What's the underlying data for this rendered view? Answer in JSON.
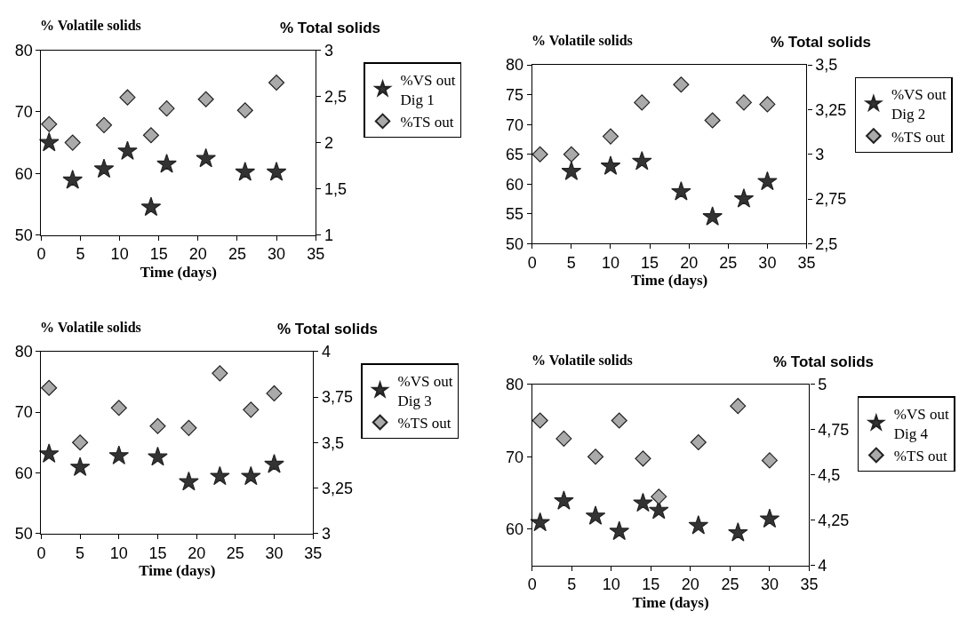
{
  "chart_data": [
    {
      "type": "scatter",
      "xlabel": "Time (days)",
      "ylabel": "% Volatile solids",
      "y2label": "% Total solids",
      "xlim": [
        0,
        35
      ],
      "xticks": [
        0,
        5,
        10,
        15,
        20,
        25,
        30,
        35
      ],
      "ylim": [
        50,
        80
      ],
      "yticks": [
        50,
        60,
        70,
        80
      ],
      "y2lim": [
        1,
        3
      ],
      "y2ticks": [
        1,
        {
          "value": 1.5,
          "label": "1,5"
        },
        2,
        {
          "value": 2.5,
          "label": "2,5"
        },
        3
      ],
      "legend": "right",
      "series": [
        {
          "name": "%VS out\nDig 1",
          "color": "#333333",
          "marker": "star",
          "x": [
            1,
            4,
            8,
            11,
            14,
            16,
            21,
            26,
            30
          ],
          "values": [
            65.0,
            58.9,
            60.7,
            63.6,
            54.5,
            61.5,
            62.4,
            60.2,
            60.2
          ]
        },
        {
          "name": "%TS out",
          "color": "#aaaaaa",
          "marker": "diamond",
          "axis": "y2",
          "x": [
            1,
            4,
            8,
            11,
            14,
            16,
            21,
            26,
            30
          ],
          "values": [
            2.2,
            2.0,
            2.19,
            2.49,
            2.08,
            2.37,
            2.47,
            2.35,
            2.65
          ]
        }
      ]
    },
    {
      "type": "scatter",
      "xlabel": "Time (days)",
      "ylabel": "% Volatile solids",
      "y2label": "% Total solids",
      "xlim": [
        0,
        35
      ],
      "xticks": [
        0,
        5,
        10,
        15,
        20,
        25,
        30,
        35
      ],
      "ylim": [
        50,
        80
      ],
      "yticks": [
        50,
        55,
        60,
        65,
        70,
        75,
        80
      ],
      "y2lim": [
        2.5,
        3.5
      ],
      "y2ticks": [
        {
          "value": 2.5,
          "label": "2,5"
        },
        {
          "value": 2.75,
          "label": "2,75"
        },
        3,
        {
          "value": 3.25,
          "label": "3,25"
        },
        {
          "value": 3.5,
          "label": "3,5"
        }
      ],
      "legend": "right",
      "series": [
        {
          "name": "%VS out\nDig 2",
          "color": "#333333",
          "marker": "star",
          "x": [
            5,
            10,
            14,
            19,
            23,
            27,
            30
          ],
          "values": [
            62.1,
            63.0,
            63.8,
            58.7,
            54.5,
            57.5,
            60.4
          ]
        },
        {
          "name": "%TS out",
          "color": "#aaaaaa",
          "marker": "diamond",
          "axis": "y2",
          "x": [
            1,
            5,
            10,
            14,
            19,
            23,
            27,
            30
          ],
          "values": [
            3.0,
            3.0,
            3.1,
            3.29,
            3.39,
            3.19,
            3.29,
            3.28
          ]
        }
      ]
    },
    {
      "type": "scatter",
      "xlabel": "Time (days)",
      "ylabel": "% Volatile solids",
      "y2label": "% Total solids",
      "xlim": [
        0,
        35
      ],
      "xticks": [
        0,
        5,
        10,
        15,
        20,
        25,
        30,
        35
      ],
      "ylim": [
        50,
        80
      ],
      "yticks": [
        50,
        60,
        70,
        80
      ],
      "y2lim": [
        3,
        4
      ],
      "y2ticks": [
        3,
        {
          "value": 3.25,
          "label": "3,25"
        },
        {
          "value": 3.5,
          "label": "3,5"
        },
        {
          "value": 3.75,
          "label": "3,75"
        },
        4
      ],
      "legend": "right",
      "series": [
        {
          "name": "%VS out\nDig 3",
          "color": "#333333",
          "marker": "star",
          "x": [
            1,
            5,
            10,
            15,
            19,
            23,
            27,
            30
          ],
          "values": [
            63.1,
            60.9,
            62.8,
            62.6,
            58.5,
            59.4,
            59.4,
            61.4
          ]
        },
        {
          "name": "%TS out",
          "color": "#aaaaaa",
          "marker": "diamond",
          "axis": "y2",
          "x": [
            1,
            5,
            10,
            15,
            19,
            23,
            27,
            30
          ],
          "values": [
            3.8,
            3.5,
            3.69,
            3.59,
            3.58,
            3.88,
            3.68,
            3.77
          ]
        }
      ]
    },
    {
      "type": "scatter",
      "xlabel": "Time (days)",
      "ylabel": "% Volatile solids",
      "y2label": "% Total solids",
      "xlim": [
        0,
        35
      ],
      "xticks": [
        0,
        5,
        10,
        15,
        20,
        25,
        30,
        35
      ],
      "ylim": [
        55,
        80
      ],
      "yticks": [
        60,
        70,
        80
      ],
      "y2lim": [
        4,
        5
      ],
      "y2ticks": [
        4,
        {
          "value": 4.25,
          "label": "4,25"
        },
        {
          "value": 4.5,
          "label": "4,5"
        },
        {
          "value": 4.75,
          "label": "4,75"
        },
        5
      ],
      "legend": "right",
      "series": [
        {
          "name": "%VS out\nDig 4",
          "color": "#333333",
          "marker": "star",
          "x": [
            1,
            4,
            8,
            11,
            14,
            16,
            21,
            26,
            30
          ],
          "values": [
            60.9,
            63.9,
            61.8,
            59.7,
            63.6,
            62.6,
            60.5,
            59.5,
            61.4
          ]
        },
        {
          "name": "%TS out",
          "color": "#aaaaaa",
          "marker": "diamond",
          "axis": "y2",
          "x": [
            1,
            4,
            8,
            11,
            14,
            16,
            21,
            26,
            30
          ],
          "values": [
            4.8,
            4.7,
            4.6,
            4.8,
            4.59,
            4.38,
            4.68,
            4.88,
            4.58
          ]
        }
      ]
    }
  ]
}
